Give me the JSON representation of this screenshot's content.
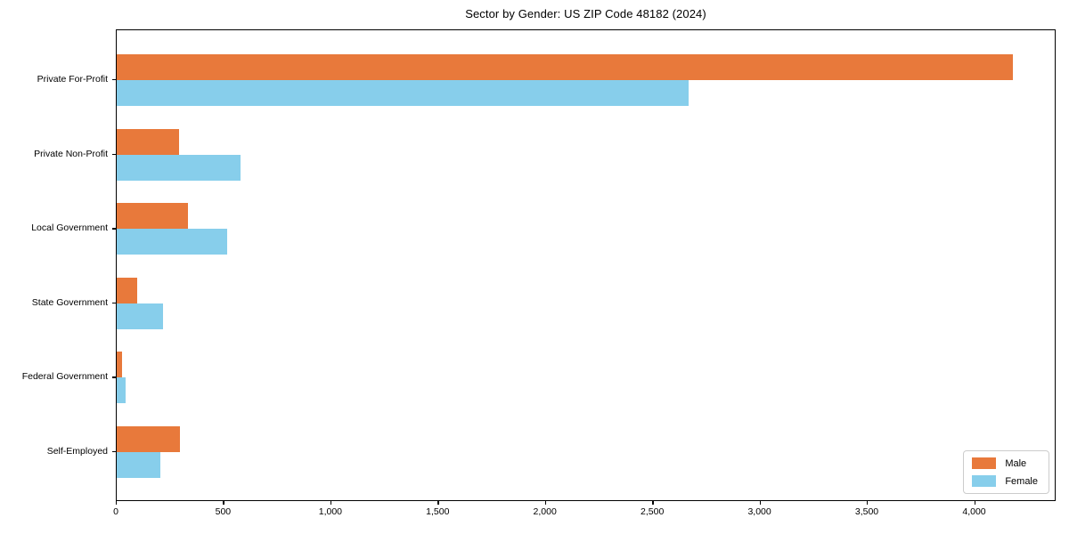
{
  "figure": {
    "title": "Sector by Gender: US ZIP Code 48182 (2024)"
  },
  "chart_data": {
    "type": "bar",
    "orientation": "horizontal",
    "title": "Sector by Gender: US ZIP Code 48182 (2024)",
    "categories": [
      "Private For-Profit",
      "Private Non-Profit",
      "Local Government",
      "State Government",
      "Federal Government",
      "Self-Employed"
    ],
    "series": [
      {
        "name": "Male",
        "color": "#E8793B",
        "values": [
          4175,
          290,
          330,
          95,
          25,
          295
        ]
      },
      {
        "name": "Female",
        "color": "#87CEEB",
        "values": [
          2665,
          575,
          515,
          215,
          40,
          205
        ]
      }
    ],
    "xlabel": "",
    "ylabel": "",
    "xlim": [
      0,
      4380
    ],
    "xticks": [
      0,
      500,
      1000,
      1500,
      2000,
      2500,
      3000,
      3500,
      4000
    ],
    "xtick_labels": [
      "0",
      "500",
      "1,000",
      "1,500",
      "2,000",
      "2,500",
      "3,000",
      "3,500",
      "4,000"
    ],
    "grid": false,
    "legend": {
      "position": "lower right",
      "entries": [
        "Male",
        "Female"
      ]
    }
  }
}
